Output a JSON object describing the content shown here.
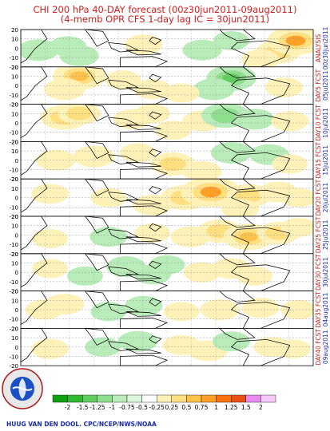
{
  "header": {
    "title_line1": "CHI 200 hPa 40-DAY forecast (00z30jun2011-09aug2011)",
    "title_line2": "(4-memb OPR CFS 1-day lag IC = 30jun2011)"
  },
  "chart_data": {
    "type": "heatmap",
    "title": "CHI 200 hPa 40-DAY forecast (00z30jun2011-09aug2011)",
    "subtitle": "(4-memb OPR CFS 1-day lag IC = 30jun2011)",
    "y_tick_labels": [
      "20",
      "10",
      "0",
      "-10",
      "-20"
    ],
    "ylim": [
      -20,
      20
    ],
    "panels": [
      {
        "label": "ANALYSIS",
        "date": "00z30jun2011",
        "label_color": "#d61c1c"
      },
      {
        "label": "DAY5 FCST",
        "date": "05jul2011",
        "label_color": "#d61c1c"
      },
      {
        "label": "DAY10 FCST",
        "date": "10jul2011",
        "label_color": "#d61c1c"
      },
      {
        "label": "DAY15 FCST",
        "date": "15jul2011",
        "label_color": "#d61c1c"
      },
      {
        "label": "DAY20 FCST",
        "date": "20jul2011",
        "label_color": "#d61c1c"
      },
      {
        "label": "DAY25 FCST",
        "date": "25jul2011",
        "label_color": "#d61c1c"
      },
      {
        "label": "DAY30 FCST",
        "date": "30jul2011",
        "label_color": "#d61c1c"
      },
      {
        "label": "DAY35 FCST",
        "date": "04aug2011",
        "label_color": "#d61c1c"
      },
      {
        "label": "DAY40 FCST",
        "date": "09aug2011",
        "label_color": "#d61c1c"
      }
    ],
    "colorbar": {
      "levels": [
        "-2",
        "-1.5",
        "-1.25",
        "-1",
        "-0.75",
        "-0.5",
        "-0.25",
        "0.25",
        "0.5",
        "0.75",
        "1",
        "1.25",
        "1.5",
        "2"
      ],
      "colors": [
        "#10a010",
        "#2fba2f",
        "#5fce5f",
        "#8ede8e",
        "#b8ecb8",
        "#dcf6dc",
        "#ffffff",
        "#fff2b8",
        "#ffdf80",
        "#ffc24a",
        "#ff9f26",
        "#f77410",
        "#e8501a",
        "#ea8af0",
        "#f5c8f7"
      ]
    },
    "fields": [
      [
        [
          0.06,
          0.55,
          -0.35
        ],
        [
          0.16,
          0.45,
          -0.25
        ],
        [
          0.2,
          0.7,
          -0.3
        ],
        [
          0.42,
          0.4,
          0.25
        ],
        [
          0.62,
          0.55,
          -0.3
        ],
        [
          0.72,
          0.3,
          -0.2
        ],
        [
          0.88,
          0.6,
          0.45
        ],
        [
          0.94,
          0.3,
          0.8
        ],
        [
          0.82,
          0.8,
          0.25
        ]
      ],
      [
        [
          0.2,
          0.25,
          0.7
        ],
        [
          0.15,
          0.6,
          0.35
        ],
        [
          0.35,
          0.35,
          0.2
        ],
        [
          0.45,
          0.6,
          0.25
        ],
        [
          0.72,
          0.3,
          -0.6
        ],
        [
          0.66,
          0.6,
          -0.35
        ],
        [
          0.9,
          0.55,
          0.25
        ],
        [
          0.55,
          0.7,
          0.2
        ]
      ],
      [
        [
          0.15,
          0.35,
          0.55
        ],
        [
          0.2,
          0.25,
          0.4
        ],
        [
          0.38,
          0.4,
          0.25
        ],
        [
          0.45,
          0.25,
          0.2
        ],
        [
          0.62,
          0.45,
          0.3
        ],
        [
          0.7,
          0.3,
          -0.55
        ],
        [
          0.8,
          0.4,
          -0.3
        ],
        [
          0.92,
          0.45,
          0.25
        ],
        [
          0.52,
          0.7,
          0.2
        ]
      ],
      [
        [
          0.12,
          0.5,
          0.3
        ],
        [
          0.25,
          0.4,
          0.35
        ],
        [
          0.4,
          0.3,
          0.2
        ],
        [
          0.52,
          0.6,
          0.45
        ],
        [
          0.62,
          0.8,
          0.3
        ],
        [
          0.72,
          0.3,
          -0.35
        ],
        [
          0.85,
          0.35,
          -0.3
        ],
        [
          0.92,
          0.6,
          0.2
        ]
      ],
      [
        [
          0.1,
          0.4,
          0.25
        ],
        [
          0.3,
          0.5,
          0.2
        ],
        [
          0.45,
          0.7,
          0.3
        ],
        [
          0.56,
          0.5,
          0.55
        ],
        [
          0.65,
          0.35,
          0.9
        ],
        [
          0.78,
          0.45,
          0.45
        ],
        [
          0.88,
          0.35,
          0.3
        ],
        [
          0.75,
          0.8,
          0.25
        ],
        [
          0.95,
          0.5,
          0.2
        ]
      ],
      [
        [
          0.1,
          0.6,
          0.2
        ],
        [
          0.3,
          0.55,
          -0.25
        ],
        [
          0.45,
          0.45,
          0.2
        ],
        [
          0.58,
          0.55,
          0.3
        ],
        [
          0.68,
          0.4,
          0.45
        ],
        [
          0.78,
          0.55,
          0.65
        ],
        [
          0.88,
          0.45,
          0.4
        ],
        [
          0.95,
          0.3,
          0.2
        ]
      ],
      [
        [
          0.1,
          0.4,
          0.2
        ],
        [
          0.22,
          0.6,
          -0.2
        ],
        [
          0.36,
          0.35,
          -0.3
        ],
        [
          0.45,
          0.55,
          -0.25
        ],
        [
          0.62,
          0.5,
          0.25
        ],
        [
          0.72,
          0.4,
          0.3
        ],
        [
          0.8,
          0.6,
          0.2
        ],
        [
          0.5,
          0.3,
          -0.2
        ]
      ],
      [
        [
          0.08,
          0.5,
          0.25
        ],
        [
          0.15,
          0.35,
          0.3
        ],
        [
          0.3,
          0.55,
          -0.2
        ],
        [
          0.42,
          0.4,
          -0.25
        ],
        [
          0.55,
          0.55,
          0.2
        ],
        [
          0.68,
          0.5,
          0.3
        ],
        [
          0.82,
          0.45,
          0.25
        ],
        [
          0.95,
          0.5,
          0.2
        ]
      ],
      [
        [
          0.1,
          0.55,
          0.25
        ],
        [
          0.28,
          0.5,
          -0.2
        ],
        [
          0.4,
          0.35,
          -0.3
        ],
        [
          0.55,
          0.45,
          0.25
        ],
        [
          0.64,
          0.6,
          0.3
        ],
        [
          0.72,
          0.35,
          -0.25
        ],
        [
          0.86,
          0.5,
          0.25
        ],
        [
          0.93,
          0.55,
          0.2
        ]
      ]
    ]
  },
  "footer": {
    "credit": "HUUG VAN DEN DOOL. CPC/NCEP/NWS/NOAA",
    "logo_text": "NATIONAL WEATHER SERVICE"
  }
}
